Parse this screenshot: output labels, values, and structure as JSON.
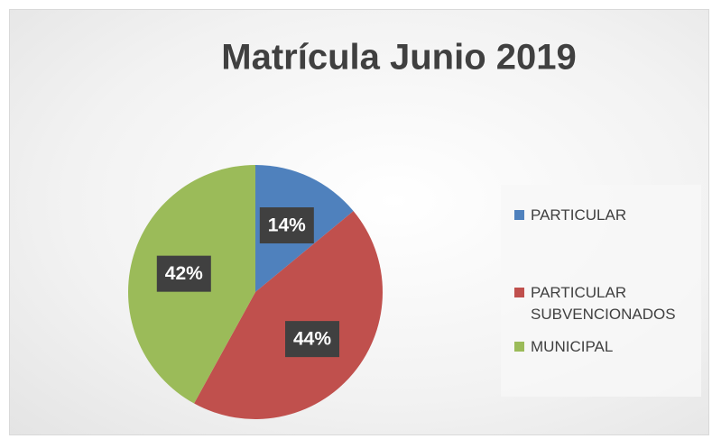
{
  "chart_data": {
    "type": "pie",
    "title": "Matrícula Junio 2019",
    "categories": [
      "PARTICULAR",
      "PARTICULAR SUBVENCIONADOS",
      "MUNICIPAL"
    ],
    "values": [
      14,
      44,
      42
    ],
    "value_labels": [
      "14%",
      "44%",
      "42%"
    ],
    "colors": [
      "#4f81bd",
      "#c0504d",
      "#9bbb59"
    ],
    "legend": "right"
  }
}
